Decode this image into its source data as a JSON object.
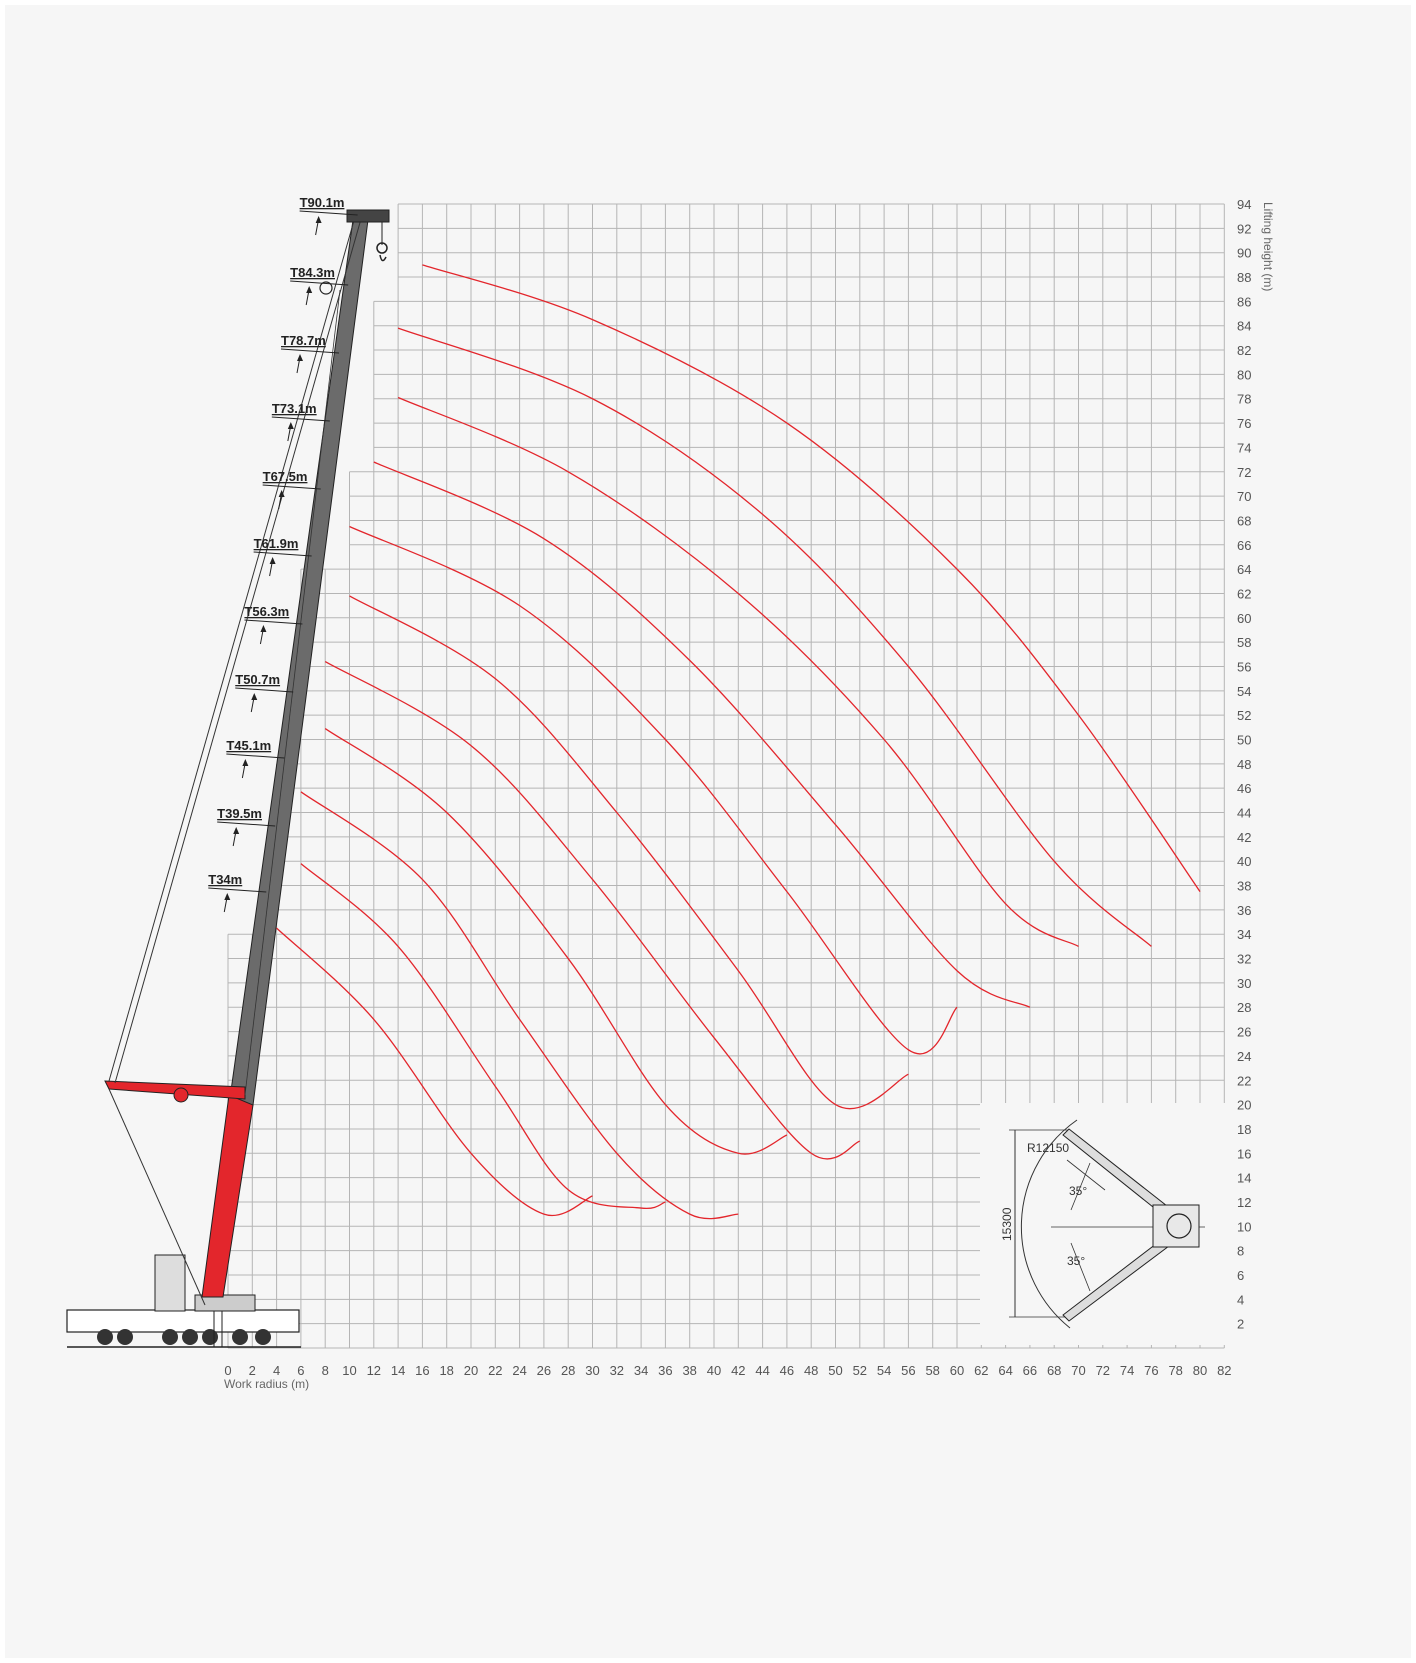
{
  "colors": {
    "curve": "#e3262c",
    "grid": "#b5b5b5",
    "boom": "#666666",
    "base_boom": "#e3262c",
    "background": "#f6f6f6"
  },
  "chart_data": {
    "type": "line",
    "xlabel": "Work radius (m)",
    "ylabel": "Lifting height (m)",
    "xlim": [
      0,
      82
    ],
    "ylim": [
      0,
      94
    ],
    "x_ticks": [
      0,
      2,
      4,
      6,
      8,
      10,
      12,
      14,
      16,
      18,
      20,
      22,
      24,
      26,
      28,
      30,
      32,
      34,
      36,
      38,
      40,
      42,
      44,
      46,
      48,
      50,
      52,
      54,
      56,
      58,
      60,
      62,
      64,
      66,
      68,
      70,
      72,
      74,
      76,
      78,
      80,
      82
    ],
    "y_ticks": [
      2,
      4,
      6,
      8,
      10,
      12,
      14,
      16,
      18,
      20,
      22,
      24,
      26,
      28,
      30,
      32,
      34,
      36,
      38,
      40,
      42,
      44,
      46,
      48,
      50,
      52,
      54,
      56,
      58,
      60,
      62,
      64,
      66,
      68,
      70,
      72,
      74,
      76,
      78,
      80,
      82,
      84,
      86,
      88,
      90,
      92,
      94
    ],
    "grid": true,
    "boom_labels": [
      "T90.1m",
      "T84.3m",
      "T78.7m",
      "T73.1m",
      "T67.5m",
      "T61.9m",
      "T56.3m",
      "T50.7m",
      "T45.1m",
      "T39.5m",
      "T34m"
    ],
    "series": [
      {
        "x": [
          16,
          30,
          46,
          60,
          70,
          80
        ],
        "y": [
          89,
          84.5,
          76,
          64,
          52,
          37.5
        ]
      },
      {
        "x": [
          14,
          30,
          44,
          56,
          68,
          76
        ],
        "y": [
          83.8,
          78,
          68.5,
          56,
          40,
          33
        ]
      },
      {
        "x": [
          14,
          28,
          42,
          54,
          64,
          70
        ],
        "y": [
          78.1,
          72,
          62,
          50,
          36.5,
          33
        ]
      },
      {
        "x": [
          12,
          26,
          38,
          50,
          60,
          66
        ],
        "y": [
          72.8,
          66.5,
          56.5,
          43,
          31,
          28
        ]
      },
      {
        "x": [
          10,
          24,
          36,
          46,
          56,
          60
        ],
        "y": [
          67.5,
          61,
          50,
          37.5,
          24.5,
          28
        ]
      },
      {
        "x": [
          10,
          22,
          32,
          42,
          50,
          56
        ],
        "y": [
          61.8,
          55,
          44,
          31,
          20,
          22.5
        ]
      },
      {
        "x": [
          8,
          20,
          30,
          40,
          48,
          52
        ],
        "y": [
          56.4,
          49.5,
          38.5,
          25.5,
          16,
          17
        ]
      },
      {
        "x": [
          8,
          18,
          28,
          36,
          42,
          46
        ],
        "y": [
          50.9,
          44,
          32,
          20,
          16,
          17.5
        ]
      },
      {
        "x": [
          6,
          16,
          24,
          32,
          38,
          42
        ],
        "y": [
          45.7,
          38.5,
          27,
          16,
          11,
          11
        ]
      },
      {
        "x": [
          6,
          14,
          22,
          28,
          34,
          36
        ],
        "y": [
          39.8,
          33,
          21.5,
          13,
          11.5,
          12
        ]
      },
      {
        "x": [
          4,
          12,
          20,
          26,
          30
        ],
        "y": [
          34.5,
          27,
          16,
          11,
          12.5
        ]
      }
    ]
  },
  "outrigger_inset": {
    "radius_label": "R12150",
    "span_label": "15300",
    "angle_upper": "35°",
    "angle_lower": "35°"
  }
}
